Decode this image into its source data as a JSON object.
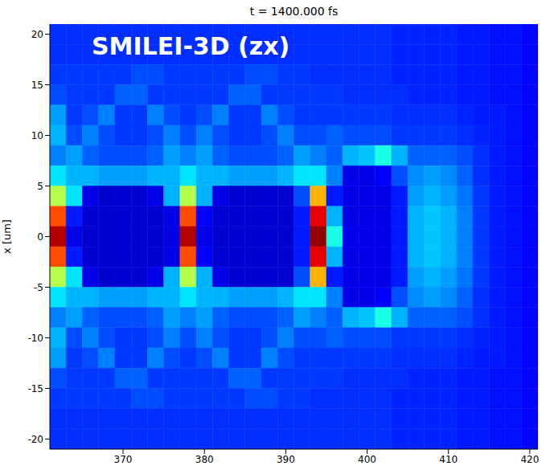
{
  "chart_data": {
    "type": "heatmap",
    "title": "t = 1400.000 fs",
    "annotation": "SMILEI-3D (zx)",
    "y_label": "x [um]",
    "x": [
      362,
      364,
      366,
      368,
      370,
      372,
      374,
      376,
      378,
      380,
      382,
      384,
      386,
      388,
      390,
      392,
      394,
      396,
      398,
      400,
      402,
      404,
      406,
      408,
      410,
      412,
      414,
      416,
      418,
      420
    ],
    "y": [
      20,
      18,
      16,
      14,
      12,
      10,
      8,
      6,
      4,
      2,
      0,
      -2,
      -4,
      -6,
      -8,
      -10,
      -12,
      -14,
      -16,
      -18,
      -20
    ],
    "cells": [
      [
        0.17,
        0.17,
        0.17,
        0.17,
        0.17,
        0.17,
        0.17,
        0.17,
        0.17,
        0.17,
        0.17,
        0.17,
        0.17,
        0.17,
        0.17,
        0.17,
        0.17,
        0.17,
        0.17,
        0.17,
        0.17,
        0.16,
        0.16,
        0.16,
        0.16,
        0.15,
        0.15,
        0.14,
        0.14,
        0.13
      ],
      [
        0.17,
        0.17,
        0.17,
        0.17,
        0.17,
        0.17,
        0.17,
        0.17,
        0.17,
        0.17,
        0.17,
        0.17,
        0.17,
        0.17,
        0.17,
        0.17,
        0.17,
        0.17,
        0.17,
        0.17,
        0.17,
        0.16,
        0.16,
        0.16,
        0.16,
        0.15,
        0.15,
        0.14,
        0.14,
        0.13
      ],
      [
        0.18,
        0.18,
        0.18,
        0.18,
        0.18,
        0.2,
        0.2,
        0.18,
        0.18,
        0.18,
        0.18,
        0.18,
        0.2,
        0.2,
        0.18,
        0.18,
        0.17,
        0.17,
        0.17,
        0.17,
        0.17,
        0.16,
        0.16,
        0.16,
        0.16,
        0.15,
        0.15,
        0.14,
        0.14,
        0.13
      ],
      [
        0.2,
        0.18,
        0.18,
        0.18,
        0.22,
        0.22,
        0.18,
        0.18,
        0.18,
        0.18,
        0.18,
        0.22,
        0.22,
        0.18,
        0.18,
        0.18,
        0.18,
        0.18,
        0.17,
        0.17,
        0.17,
        0.17,
        0.16,
        0.16,
        0.16,
        0.15,
        0.15,
        0.14,
        0.14,
        0.13
      ],
      [
        0.28,
        0.18,
        0.2,
        0.25,
        0.18,
        0.18,
        0.25,
        0.2,
        0.18,
        0.2,
        0.25,
        0.18,
        0.18,
        0.25,
        0.2,
        0.18,
        0.18,
        0.18,
        0.18,
        0.18,
        0.18,
        0.17,
        0.17,
        0.17,
        0.17,
        0.16,
        0.15,
        0.15,
        0.14,
        0.13
      ],
      [
        0.3,
        0.2,
        0.25,
        0.2,
        0.18,
        0.18,
        0.2,
        0.25,
        0.2,
        0.25,
        0.2,
        0.18,
        0.18,
        0.2,
        0.25,
        0.2,
        0.2,
        0.22,
        0.2,
        0.2,
        0.2,
        0.18,
        0.18,
        0.18,
        0.18,
        0.17,
        0.16,
        0.15,
        0.14,
        0.13
      ],
      [
        0.25,
        0.28,
        0.22,
        0.2,
        0.2,
        0.2,
        0.22,
        0.28,
        0.25,
        0.28,
        0.22,
        0.2,
        0.2,
        0.2,
        0.22,
        0.28,
        0.25,
        0.22,
        0.3,
        0.32,
        0.4,
        0.3,
        0.22,
        0.22,
        0.22,
        0.2,
        0.17,
        0.15,
        0.14,
        0.13
      ],
      [
        0.35,
        0.3,
        0.3,
        0.28,
        0.28,
        0.28,
        0.3,
        0.3,
        0.35,
        0.3,
        0.3,
        0.28,
        0.28,
        0.28,
        0.3,
        0.35,
        0.35,
        0.25,
        0.1,
        0.1,
        0.12,
        0.2,
        0.26,
        0.28,
        0.26,
        0.22,
        0.17,
        0.15,
        0.14,
        0.13
      ],
      [
        0.55,
        0.35,
        0.1,
        0.08,
        0.08,
        0.08,
        0.1,
        0.3,
        0.55,
        0.3,
        0.1,
        0.08,
        0.08,
        0.08,
        0.08,
        0.2,
        0.7,
        0.15,
        0.1,
        0.1,
        0.1,
        0.15,
        0.28,
        0.3,
        0.28,
        0.24,
        0.18,
        0.15,
        0.14,
        0.13
      ],
      [
        0.8,
        0.15,
        0.08,
        0.08,
        0.08,
        0.08,
        0.08,
        0.1,
        0.8,
        0.12,
        0.08,
        0.08,
        0.08,
        0.08,
        0.08,
        0.15,
        0.9,
        0.3,
        0.1,
        0.1,
        0.1,
        0.15,
        0.3,
        0.32,
        0.3,
        0.25,
        0.18,
        0.15,
        0.14,
        0.13
      ],
      [
        0.95,
        0.1,
        0.08,
        0.08,
        0.08,
        0.08,
        0.08,
        0.1,
        0.95,
        0.1,
        0.08,
        0.08,
        0.08,
        0.08,
        0.08,
        0.15,
        0.98,
        0.4,
        0.1,
        0.1,
        0.1,
        0.15,
        0.3,
        0.32,
        0.3,
        0.25,
        0.18,
        0.15,
        0.14,
        0.13
      ],
      [
        0.8,
        0.15,
        0.08,
        0.08,
        0.08,
        0.08,
        0.08,
        0.1,
        0.8,
        0.12,
        0.08,
        0.08,
        0.08,
        0.08,
        0.08,
        0.15,
        0.9,
        0.3,
        0.1,
        0.1,
        0.1,
        0.15,
        0.3,
        0.32,
        0.3,
        0.25,
        0.18,
        0.15,
        0.14,
        0.13
      ],
      [
        0.55,
        0.35,
        0.1,
        0.08,
        0.08,
        0.08,
        0.1,
        0.3,
        0.55,
        0.3,
        0.1,
        0.08,
        0.08,
        0.08,
        0.08,
        0.2,
        0.7,
        0.15,
        0.1,
        0.1,
        0.1,
        0.15,
        0.28,
        0.3,
        0.28,
        0.24,
        0.18,
        0.15,
        0.14,
        0.13
      ],
      [
        0.35,
        0.3,
        0.3,
        0.28,
        0.28,
        0.28,
        0.3,
        0.3,
        0.35,
        0.3,
        0.3,
        0.28,
        0.28,
        0.28,
        0.3,
        0.35,
        0.35,
        0.25,
        0.1,
        0.1,
        0.12,
        0.2,
        0.26,
        0.28,
        0.26,
        0.22,
        0.17,
        0.15,
        0.14,
        0.13
      ],
      [
        0.25,
        0.28,
        0.22,
        0.2,
        0.2,
        0.2,
        0.22,
        0.28,
        0.25,
        0.28,
        0.22,
        0.2,
        0.2,
        0.2,
        0.22,
        0.28,
        0.25,
        0.22,
        0.3,
        0.32,
        0.4,
        0.3,
        0.22,
        0.22,
        0.22,
        0.2,
        0.17,
        0.15,
        0.14,
        0.13
      ],
      [
        0.3,
        0.2,
        0.25,
        0.2,
        0.18,
        0.18,
        0.2,
        0.25,
        0.2,
        0.25,
        0.2,
        0.18,
        0.18,
        0.2,
        0.25,
        0.2,
        0.2,
        0.22,
        0.2,
        0.2,
        0.2,
        0.18,
        0.18,
        0.18,
        0.18,
        0.17,
        0.16,
        0.15,
        0.14,
        0.13
      ],
      [
        0.28,
        0.18,
        0.2,
        0.25,
        0.18,
        0.18,
        0.25,
        0.2,
        0.18,
        0.2,
        0.25,
        0.18,
        0.18,
        0.25,
        0.2,
        0.18,
        0.18,
        0.18,
        0.18,
        0.18,
        0.18,
        0.17,
        0.17,
        0.17,
        0.17,
        0.16,
        0.15,
        0.15,
        0.14,
        0.13
      ],
      [
        0.2,
        0.18,
        0.18,
        0.18,
        0.22,
        0.22,
        0.18,
        0.18,
        0.18,
        0.18,
        0.18,
        0.22,
        0.22,
        0.18,
        0.18,
        0.18,
        0.18,
        0.18,
        0.17,
        0.17,
        0.17,
        0.17,
        0.16,
        0.16,
        0.16,
        0.15,
        0.15,
        0.14,
        0.14,
        0.13
      ],
      [
        0.18,
        0.18,
        0.18,
        0.18,
        0.18,
        0.2,
        0.2,
        0.18,
        0.18,
        0.18,
        0.18,
        0.18,
        0.2,
        0.2,
        0.18,
        0.18,
        0.17,
        0.17,
        0.17,
        0.17,
        0.17,
        0.16,
        0.16,
        0.16,
        0.16,
        0.15,
        0.15,
        0.14,
        0.14,
        0.13
      ],
      [
        0.17,
        0.17,
        0.17,
        0.17,
        0.17,
        0.17,
        0.17,
        0.17,
        0.17,
        0.17,
        0.17,
        0.17,
        0.17,
        0.17,
        0.17,
        0.17,
        0.17,
        0.17,
        0.17,
        0.17,
        0.17,
        0.16,
        0.16,
        0.16,
        0.16,
        0.15,
        0.15,
        0.14,
        0.14,
        0.13
      ],
      [
        0.17,
        0.17,
        0.17,
        0.17,
        0.17,
        0.17,
        0.17,
        0.17,
        0.17,
        0.17,
        0.17,
        0.17,
        0.17,
        0.17,
        0.17,
        0.17,
        0.17,
        0.17,
        0.17,
        0.17,
        0.17,
        0.16,
        0.16,
        0.16,
        0.16,
        0.15,
        0.15,
        0.14,
        0.14,
        0.13
      ]
    ],
    "xlim": [
      361,
      421
    ],
    "ylim": [
      -21,
      21
    ],
    "xticks": [
      370,
      380,
      390,
      400,
      410,
      420
    ],
    "yticks": [
      -20,
      -15,
      -10,
      -5,
      0,
      5,
      10,
      15,
      20
    ]
  }
}
